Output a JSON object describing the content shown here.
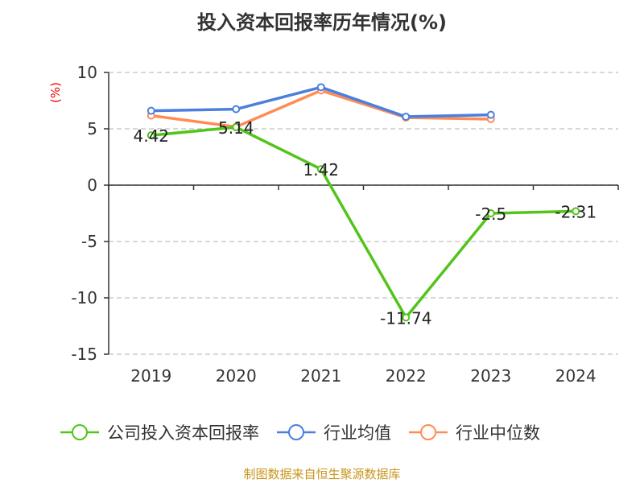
{
  "chart_data": {
    "type": "line",
    "title": "投入资本回报率历年情况(%)",
    "ylabel": "(%)",
    "categories": [
      "2019",
      "2020",
      "2021",
      "2022",
      "2023",
      "2024"
    ],
    "ylim": [
      -15,
      10
    ],
    "yticks": [
      10,
      5,
      0,
      -5,
      -10,
      -15
    ],
    "grid": true,
    "legend_position": "bottom",
    "series": [
      {
        "name": "公司投入资本回报率",
        "color": "#52c41a",
        "values": [
          4.42,
          5.14,
          1.42,
          -11.74,
          -2.5,
          -2.31
        ],
        "labels": [
          "4.42",
          "5.14",
          "1.42",
          "-11.74",
          "-2.5",
          "-2.31"
        ]
      },
      {
        "name": "行业均值",
        "color": "#4a7fe0",
        "values": [
          6.6,
          6.74,
          8.69,
          6.07,
          6.24,
          null
        ]
      },
      {
        "name": "行业中位数",
        "color": "#ff8c55",
        "values": [
          6.17,
          5.17,
          8.4,
          6.0,
          5.86,
          null
        ]
      }
    ]
  },
  "source": "制图数据来自恒生聚源数据库"
}
